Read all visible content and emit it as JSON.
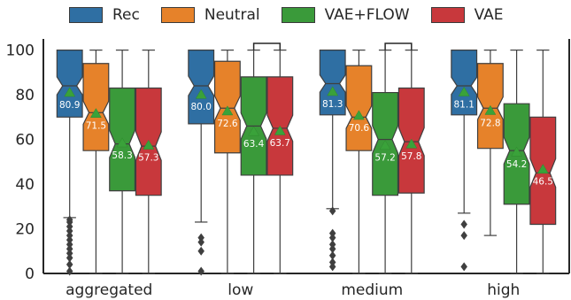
{
  "chart_data": {
    "type": "box",
    "categories": [
      "aggregated",
      "low",
      "medium",
      "high"
    ],
    "ylim": [
      0,
      105
    ],
    "yticks": [
      0,
      20,
      40,
      60,
      80,
      100
    ],
    "grid": false,
    "legend_position": "top",
    "series": [
      {
        "name": "Rec",
        "color": "#2f6fa3",
        "boxes": [
          {
            "q1": 70,
            "median": 84,
            "q3": 100,
            "whisker_low": 25,
            "whisker_high": 100,
            "mean": 80.9,
            "outliers": [
              24,
              23,
              21,
              19,
              17,
              15,
              13,
              11,
              9,
              7,
              4,
              1
            ]
          },
          {
            "q1": 67,
            "median": 84,
            "q3": 100,
            "whisker_low": 23,
            "whisker_high": 100,
            "mean": 80.0,
            "outliers": [
              16,
              14,
              10,
              1
            ]
          },
          {
            "q1": 71,
            "median": 85,
            "q3": 100,
            "whisker_low": 29,
            "whisker_high": 100,
            "mean": 81.3,
            "outliers": [
              28,
              18,
              16,
              13,
              11,
              8,
              5,
              3
            ]
          },
          {
            "q1": 71,
            "median": 84,
            "q3": 100,
            "whisker_low": 27,
            "whisker_high": 100,
            "mean": 81.1,
            "outliers": [
              22,
              17,
              3
            ]
          }
        ]
      },
      {
        "name": "Neutral",
        "color": "#e6822a",
        "boxes": [
          {
            "q1": 55,
            "median": 72,
            "q3": 94,
            "whisker_low": 0,
            "whisker_high": 100,
            "mean": 71.5,
            "outliers": []
          },
          {
            "q1": 54,
            "median": 74,
            "q3": 95,
            "whisker_low": 0,
            "whisker_high": 100,
            "mean": 72.6,
            "outliers": []
          },
          {
            "q1": 55,
            "median": 70,
            "q3": 93,
            "whisker_low": 0,
            "whisker_high": 100,
            "mean": 70.6,
            "outliers": []
          },
          {
            "q1": 56,
            "median": 74,
            "q3": 94,
            "whisker_low": 17,
            "whisker_high": 100,
            "mean": 72.8,
            "outliers": []
          }
        ]
      },
      {
        "name": "VAE+FLOW",
        "color": "#3a9a3a",
        "boxes": [
          {
            "q1": 37,
            "median": 58,
            "q3": 83,
            "whisker_low": 0,
            "whisker_high": 100,
            "mean": 58.3,
            "outliers": []
          },
          {
            "q1": 44,
            "median": 66,
            "q3": 88,
            "whisker_low": 0,
            "whisker_high": 100,
            "mean": 63.4,
            "outliers": []
          },
          {
            "q1": 35,
            "median": 60,
            "q3": 81,
            "whisker_low": 0,
            "whisker_high": 100,
            "mean": 57.2,
            "outliers": []
          },
          {
            "q1": 31,
            "median": 55,
            "q3": 76,
            "whisker_low": 0,
            "whisker_high": 100,
            "mean": 54.2,
            "outliers": []
          }
        ]
      },
      {
        "name": "VAE",
        "color": "#c8383c",
        "boxes": [
          {
            "q1": 35,
            "median": 57,
            "q3": 83,
            "whisker_low": 0,
            "whisker_high": 100,
            "mean": 57.3,
            "outliers": []
          },
          {
            "q1": 44,
            "median": 65,
            "q3": 88,
            "whisker_low": 0,
            "whisker_high": 100,
            "mean": 63.7,
            "outliers": []
          },
          {
            "q1": 36,
            "median": 59,
            "q3": 83,
            "whisker_low": 0,
            "whisker_high": 100,
            "mean": 57.8,
            "outliers": []
          },
          {
            "q1": 22,
            "median": 45,
            "q3": 70,
            "whisker_low": 0,
            "whisker_high": 100,
            "mean": 46.5,
            "outliers": []
          }
        ]
      }
    ],
    "significance_brackets": [
      {
        "category": "low",
        "from_series": "VAE+FLOW",
        "to_series": "VAE",
        "y": 103
      },
      {
        "category": "medium",
        "from_series": "VAE+FLOW",
        "to_series": "VAE",
        "y": 103
      }
    ]
  }
}
